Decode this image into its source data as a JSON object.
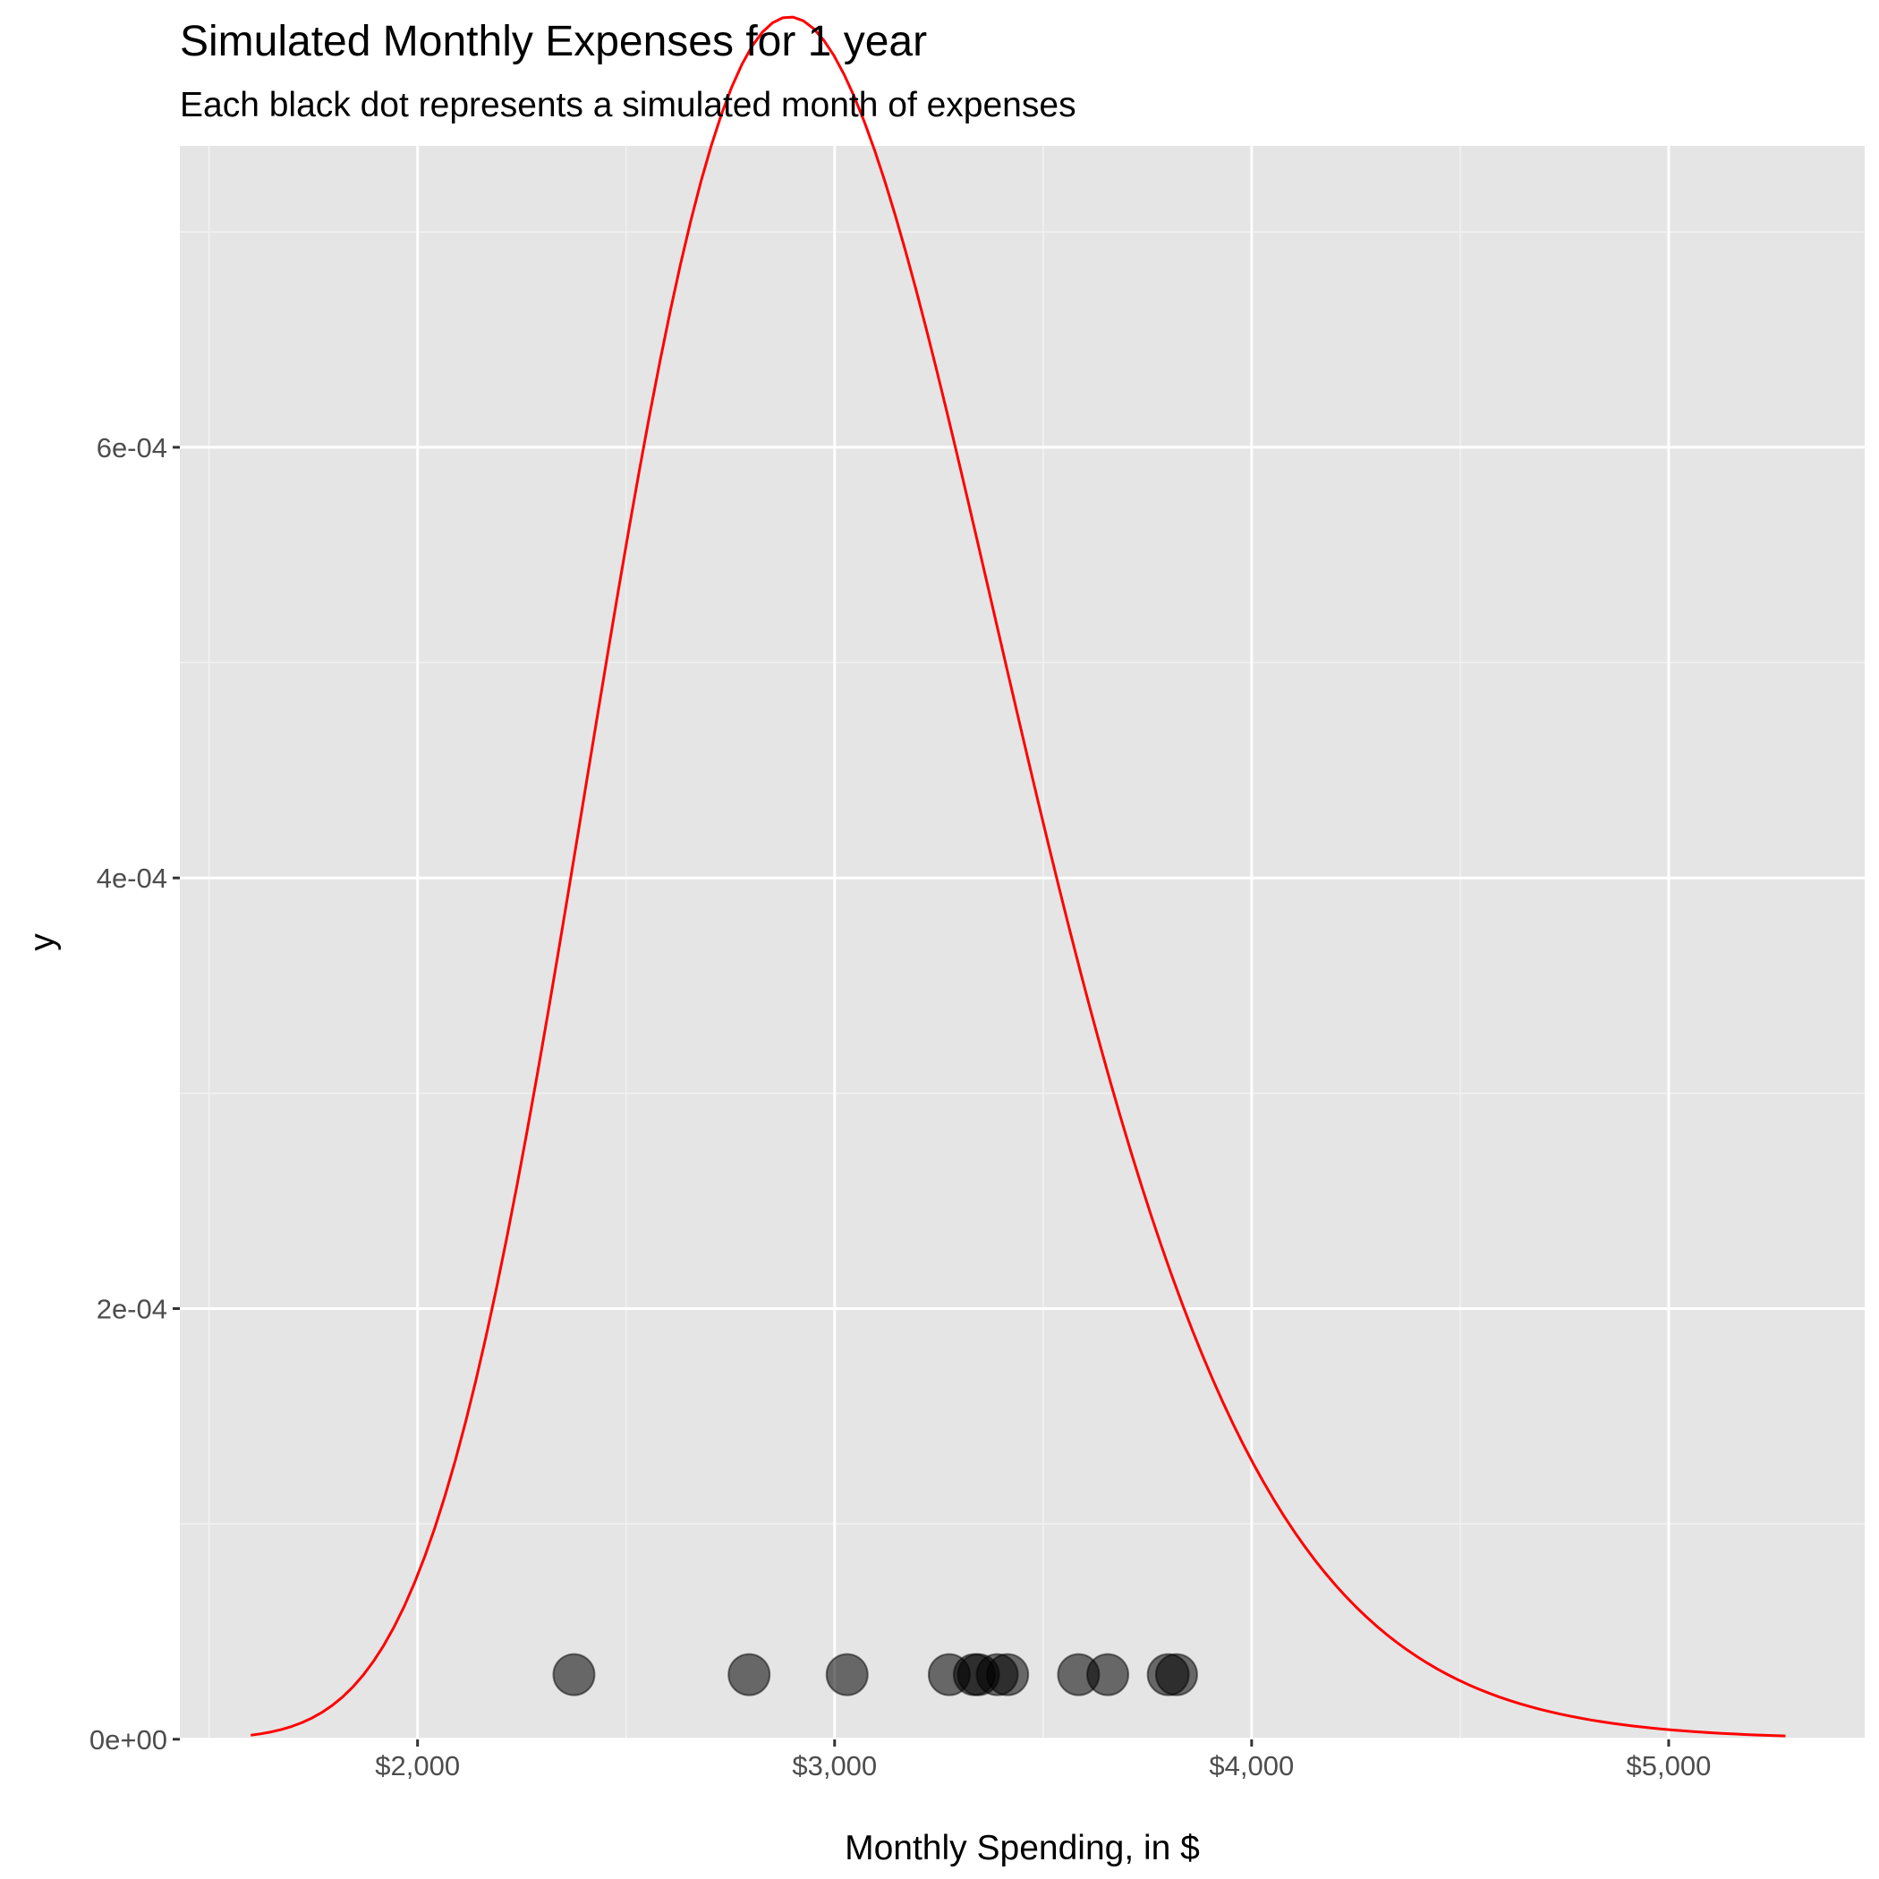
{
  "chart_data": {
    "type": "scatter",
    "title": "Simulated Monthly Expenses for 1 year",
    "subtitle": "Each black dot represents a simulated month of expenses",
    "xlabel": "Monthly Spending, in $",
    "ylabel": "y",
    "xlim": [
      1430,
      5470
    ],
    "ylim": [
      -8e-08,
      0.00074
    ],
    "x_ticks": [
      2000,
      3000,
      4000,
      5000
    ],
    "x_tick_labels": [
      "$2,000",
      "$3,000",
      "$4,000",
      "$5,000"
    ],
    "y_ticks": [
      0,
      0.0002,
      0.0004,
      0.0006
    ],
    "y_tick_labels": [
      "0e+00",
      "2e-04",
      "4e-04",
      "6e-04"
    ],
    "x_minor_ticks": [
      1500,
      2500,
      3500,
      4500,
      5500
    ],
    "y_minor_ticks": [
      0.0001,
      0.0003,
      0.0005,
      0.0007
    ],
    "grid": true,
    "panel_background": "#e5e5e5",
    "series": [
      {
        "type": "line",
        "color": "#ff0000",
        "distribution": "lognormal",
        "meanlog": 7.9985,
        "sdlog": 0.17,
        "x_range": [
          1600,
          5280
        ],
        "samples": 150
      },
      {
        "type": "scatter",
        "color": "#000000",
        "opacity": 0.55,
        "x": [
          2375,
          2795,
          3030,
          3275,
          3335,
          3345,
          3390,
          3415,
          3585,
          3655,
          3800,
          3820
        ],
        "y": [
          3e-05,
          3e-05,
          3e-05,
          3e-05,
          3e-05,
          3e-05,
          3e-05,
          3e-05,
          3e-05,
          3e-05,
          3e-05,
          3e-05
        ]
      }
    ]
  }
}
